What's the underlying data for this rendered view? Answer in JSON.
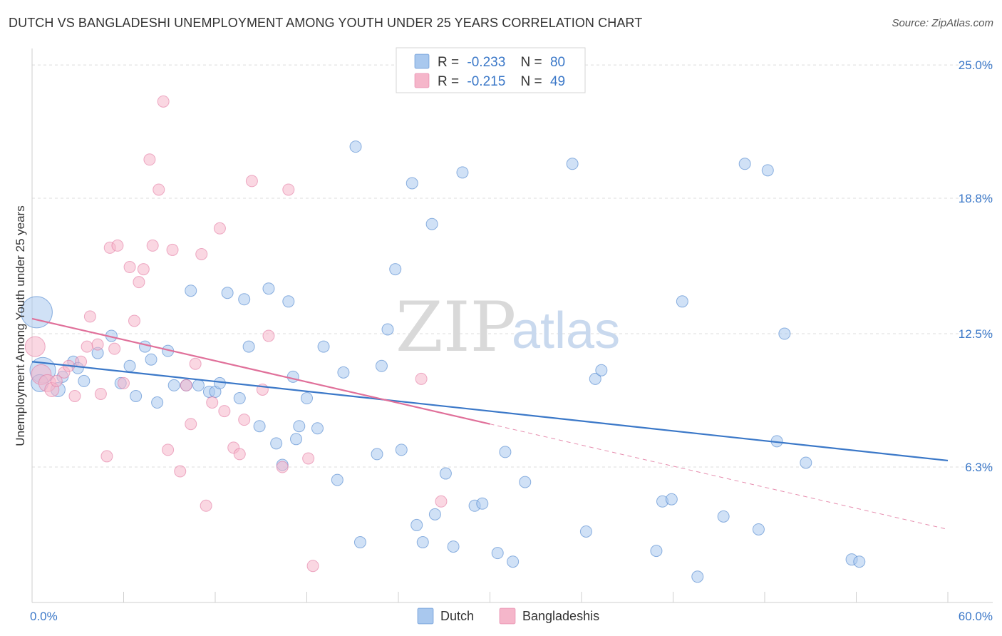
{
  "title": "DUTCH VS BANGLADESHI UNEMPLOYMENT AMONG YOUTH UNDER 25 YEARS CORRELATION CHART",
  "source": "Source: ZipAtlas.com",
  "colors": {
    "dutch": "#3b78c8",
    "dutch_fill": "#a9c8ee",
    "bangladeshi": "#e0709a",
    "bangladeshi_fill": "#f5b6ca",
    "axis_text": "#3b78c8"
  },
  "chart_data": {
    "type": "scatter",
    "title": "DUTCH VS BANGLADESHI UNEMPLOYMENT AMONG YOUTH UNDER 25 YEARS CORRELATION CHART",
    "xlabel": "",
    "ylabel": "Unemployment Among Youth under 25 years",
    "xlim": [
      0,
      60
    ],
    "ylim": [
      0,
      25.5
    ],
    "x_tick_labels": [
      "0.0%",
      "60.0%"
    ],
    "y_ticks": [
      6.3,
      12.5,
      18.8,
      25.0
    ],
    "y_tick_labels": [
      "6.3%",
      "12.5%",
      "18.8%",
      "25.0%"
    ],
    "legend": {
      "position": "top-center",
      "entries": [
        {
          "name": "Dutch",
          "r_label": "R =",
          "r": "-0.233",
          "n_label": "N =",
          "n": "80"
        },
        {
          "name": "Bangladeshis",
          "r_label": "R =",
          "r": "-0.215",
          "n_label": "N =",
          "n": "49"
        }
      ]
    },
    "bottom_legend": [
      "Dutch",
      "Bangladeshis"
    ],
    "watermark": {
      "zip": "ZIP",
      "atlas": "atlas"
    },
    "series": [
      {
        "name": "Dutch",
        "trend": {
          "x0": 0,
          "y0": 11.2,
          "x1": 60,
          "y1": 6.6
        },
        "points": [
          [
            0.3,
            13.5,
            22
          ],
          [
            0.7,
            10.8,
            18
          ],
          [
            0.5,
            10.2,
            12
          ],
          [
            1.7,
            9.9,
            10
          ],
          [
            2.0,
            10.5,
            8
          ],
          [
            2.7,
            11.2,
            8
          ],
          [
            3.4,
            10.3,
            8
          ],
          [
            3.0,
            10.9,
            8
          ],
          [
            4.3,
            11.6,
            8
          ],
          [
            5.2,
            12.4,
            8
          ],
          [
            5.8,
            10.2,
            8
          ],
          [
            6.4,
            11.0,
            8
          ],
          [
            6.8,
            9.6,
            8
          ],
          [
            7.4,
            11.9,
            8
          ],
          [
            7.8,
            11.3,
            8
          ],
          [
            8.2,
            9.3,
            8
          ],
          [
            8.9,
            11.7,
            8
          ],
          [
            9.3,
            10.1,
            8
          ],
          [
            10.1,
            10.1,
            8
          ],
          [
            10.4,
            14.5,
            8
          ],
          [
            10.9,
            10.1,
            8
          ],
          [
            11.6,
            9.8,
            8
          ],
          [
            12.0,
            9.8,
            8
          ],
          [
            12.3,
            10.2,
            8
          ],
          [
            12.8,
            14.4,
            8
          ],
          [
            13.6,
            9.5,
            8
          ],
          [
            13.9,
            14.1,
            8
          ],
          [
            14.2,
            11.9,
            8
          ],
          [
            14.9,
            8.2,
            8
          ],
          [
            15.5,
            14.6,
            8
          ],
          [
            16.0,
            7.4,
            8
          ],
          [
            16.4,
            6.4,
            8
          ],
          [
            16.8,
            14.0,
            8
          ],
          [
            17.1,
            10.5,
            8
          ],
          [
            17.3,
            7.6,
            8
          ],
          [
            17.5,
            8.2,
            8
          ],
          [
            18.0,
            9.5,
            8
          ],
          [
            18.7,
            8.1,
            8
          ],
          [
            19.1,
            11.9,
            8
          ],
          [
            20.0,
            5.7,
            8
          ],
          [
            20.4,
            10.7,
            8
          ],
          [
            21.2,
            21.2,
            8
          ],
          [
            21.5,
            2.8,
            8
          ],
          [
            22.6,
            6.9,
            8
          ],
          [
            22.9,
            11.0,
            8
          ],
          [
            23.3,
            12.7,
            8
          ],
          [
            23.8,
            15.5,
            8
          ],
          [
            24.2,
            7.1,
            8
          ],
          [
            24.9,
            19.5,
            8
          ],
          [
            25.2,
            3.6,
            8
          ],
          [
            25.6,
            2.8,
            8
          ],
          [
            26.2,
            17.6,
            8
          ],
          [
            26.4,
            4.1,
            8
          ],
          [
            27.1,
            6.0,
            8
          ],
          [
            27.6,
            2.6,
            8
          ],
          [
            28.2,
            20.0,
            8
          ],
          [
            29.0,
            4.5,
            8
          ],
          [
            29.5,
            4.6,
            8
          ],
          [
            30.5,
            2.3,
            8
          ],
          [
            31.0,
            7.0,
            8
          ],
          [
            31.5,
            1.9,
            8
          ],
          [
            32.3,
            5.6,
            8
          ],
          [
            35.4,
            20.4,
            8
          ],
          [
            36.3,
            3.3,
            8
          ],
          [
            36.9,
            10.4,
            8
          ],
          [
            37.3,
            10.8,
            8
          ],
          [
            40.9,
            2.4,
            8
          ],
          [
            41.3,
            4.7,
            8
          ],
          [
            41.9,
            4.8,
            8
          ],
          [
            42.6,
            14.0,
            8
          ],
          [
            43.6,
            1.2,
            8
          ],
          [
            45.3,
            4.0,
            8
          ],
          [
            46.7,
            20.4,
            8
          ],
          [
            47.6,
            3.4,
            8
          ],
          [
            48.2,
            20.1,
            8
          ],
          [
            48.8,
            7.5,
            8
          ],
          [
            49.3,
            12.5,
            8
          ],
          [
            50.7,
            6.5,
            8
          ],
          [
            53.7,
            2.0,
            8
          ],
          [
            54.2,
            1.9,
            8
          ]
        ]
      },
      {
        "name": "Bangladeshis",
        "trend": {
          "x0": 0,
          "y0": 13.2,
          "x1": 30,
          "y1": 8.3,
          "dash_x1": 60,
          "dash_y1": 3.4
        },
        "points": [
          [
            0.2,
            11.9,
            14
          ],
          [
            0.6,
            10.6,
            14
          ],
          [
            1.0,
            10.2,
            12
          ],
          [
            1.3,
            9.9,
            10
          ],
          [
            1.6,
            10.3,
            8
          ],
          [
            2.1,
            10.7,
            8
          ],
          [
            2.4,
            11.0,
            8
          ],
          [
            2.8,
            9.6,
            8
          ],
          [
            3.2,
            11.2,
            8
          ],
          [
            3.6,
            11.9,
            8
          ],
          [
            3.8,
            13.3,
            8
          ],
          [
            4.3,
            12.0,
            8
          ],
          [
            4.5,
            9.7,
            8
          ],
          [
            4.9,
            6.8,
            8
          ],
          [
            5.1,
            16.5,
            8
          ],
          [
            5.4,
            11.8,
            8
          ],
          [
            5.6,
            16.6,
            8
          ],
          [
            6.0,
            10.2,
            8
          ],
          [
            6.4,
            15.6,
            8
          ],
          [
            6.7,
            13.1,
            8
          ],
          [
            7.0,
            14.9,
            8
          ],
          [
            7.3,
            15.5,
            8
          ],
          [
            7.7,
            20.6,
            8
          ],
          [
            7.9,
            16.6,
            8
          ],
          [
            8.3,
            19.2,
            8
          ],
          [
            8.6,
            23.3,
            8
          ],
          [
            8.9,
            7.1,
            8
          ],
          [
            9.2,
            16.4,
            8
          ],
          [
            9.7,
            6.1,
            8
          ],
          [
            10.1,
            10.1,
            8
          ],
          [
            10.4,
            8.3,
            8
          ],
          [
            10.7,
            11.1,
            8
          ],
          [
            11.1,
            16.2,
            8
          ],
          [
            11.4,
            4.5,
            8
          ],
          [
            11.8,
            9.3,
            8
          ],
          [
            12.3,
            17.4,
            8
          ],
          [
            12.6,
            8.9,
            8
          ],
          [
            13.2,
            7.2,
            8
          ],
          [
            13.6,
            6.9,
            8
          ],
          [
            13.9,
            8.5,
            8
          ],
          [
            14.4,
            19.6,
            8
          ],
          [
            15.1,
            9.9,
            8
          ],
          [
            15.5,
            12.4,
            8
          ],
          [
            16.4,
            6.3,
            8
          ],
          [
            16.8,
            19.2,
            8
          ],
          [
            18.1,
            6.7,
            8
          ],
          [
            18.4,
            1.7,
            8
          ],
          [
            25.5,
            10.4,
            8
          ],
          [
            26.8,
            4.7,
            8
          ]
        ]
      }
    ]
  }
}
